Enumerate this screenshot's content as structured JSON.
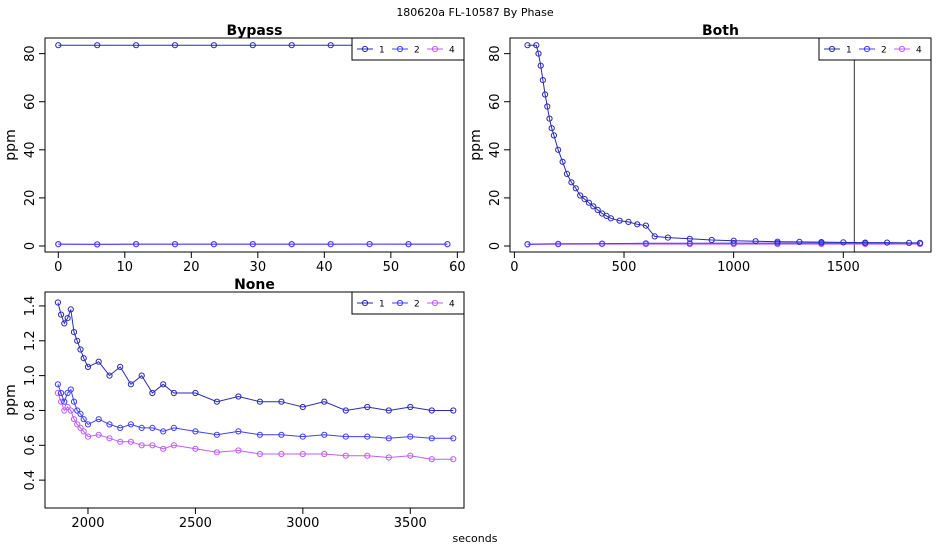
{
  "figure": {
    "suptitle": "180620a    FL-10587   By Phase",
    "xlabel": "seconds"
  },
  "chart_data": [
    {
      "type": "line",
      "title": "Bypass",
      "ylabel": "ppm",
      "xlabel": "",
      "xlim": [
        -2,
        61
      ],
      "ylim": [
        -2.5,
        86.5
      ],
      "xticks": [
        0,
        10,
        20,
        30,
        40,
        50,
        60
      ],
      "yticks": [
        0,
        20,
        40,
        60,
        80
      ],
      "legend_position": "top-right",
      "series": [
        {
          "name": "1",
          "color": "#2a2ab8",
          "x": [
            0,
            5.85,
            11.7,
            17.55,
            23.4,
            29.25,
            35.1,
            40.95,
            46.8,
            52.65,
            58.5
          ],
          "y": [
            83.5,
            83.5,
            83.5,
            83.5,
            83.5,
            83.5,
            83.5,
            83.5,
            83.5,
            83.5,
            83.5
          ]
        },
        {
          "name": "2",
          "color": "#3f3fff",
          "x": [
            0,
            5.85,
            11.7,
            17.55,
            23.4,
            29.25,
            35.1,
            40.95,
            46.8,
            52.65,
            58.5
          ],
          "y": [
            0.8,
            0.7,
            0.8,
            0.8,
            0.8,
            0.8,
            0.8,
            0.8,
            0.8,
            0.8,
            0.8
          ]
        },
        {
          "name": "4",
          "color": "#c05cff",
          "x": [
            0,
            5.85,
            11.7,
            17.55,
            23.4,
            29.25,
            35.1,
            40.95,
            46.8,
            52.65,
            58.5
          ],
          "y": [
            0.7,
            0.6,
            0.7,
            0.7,
            0.7,
            0.7,
            0.7,
            0.7,
            0.8,
            0.7,
            0.7
          ]
        }
      ]
    },
    {
      "type": "line",
      "title": "Both",
      "ylabel": "ppm",
      "xlabel": "",
      "xlim": [
        -20,
        1900
      ],
      "ylim": [
        -2.5,
        86.5
      ],
      "xticks": [
        0,
        500,
        1000,
        1500
      ],
      "yticks": [
        0,
        20,
        40,
        60,
        80
      ],
      "legend_position": "top-right",
      "vline": 1550,
      "series": [
        {
          "name": "1",
          "color": "#2a2ab8",
          "x": [
            60,
            100,
            110,
            120,
            130,
            140,
            150,
            160,
            170,
            180,
            200,
            220,
            240,
            260,
            280,
            300,
            320,
            340,
            360,
            380,
            400,
            420,
            440,
            480,
            520,
            560,
            600,
            640,
            700,
            800,
            900,
            1000,
            1100,
            1200,
            1300,
            1400,
            1500,
            1600,
            1700,
            1800,
            1850
          ],
          "y": [
            83.5,
            83.5,
            80,
            75,
            69,
            63,
            58,
            53,
            49,
            46,
            40,
            35,
            30,
            26.5,
            24,
            21,
            19.5,
            18,
            16.5,
            15,
            13.5,
            12.5,
            11.5,
            10.5,
            10,
            9,
            8.5,
            4,
            3.5,
            3,
            2.5,
            2.2,
            2,
            1.8,
            1.7,
            1.6,
            1.5,
            1.4,
            1.4,
            1.3,
            1.3
          ]
        },
        {
          "name": "2",
          "color": "#3f3fff",
          "x": [
            60,
            200,
            400,
            600,
            800,
            1000,
            1200,
            1400,
            1600,
            1850
          ],
          "y": [
            0.8,
            0.9,
            1.0,
            1.1,
            1.1,
            1.2,
            1.2,
            1.2,
            1.2,
            1.2
          ]
        },
        {
          "name": "4",
          "color": "#c05cff",
          "x": [
            60,
            200,
            400,
            600,
            800,
            1000,
            1200,
            1400,
            1600,
            1850
          ],
          "y": [
            0.6,
            0.7,
            0.8,
            0.8,
            0.8,
            0.8,
            0.8,
            0.8,
            0.8,
            0.8
          ]
        }
      ]
    },
    {
      "type": "line",
      "title": "None",
      "ylabel": "ppm",
      "xlabel": "",
      "xlim": [
        1800,
        3750
      ],
      "ylim": [
        0.24,
        1.48
      ],
      "xticks": [
        2000,
        2500,
        3000,
        3500
      ],
      "yticks": [
        0.4,
        0.6,
        0.8,
        1.0,
        1.2,
        1.4
      ],
      "legend_position": "top-right",
      "series": [
        {
          "name": "1",
          "color": "#2a2ab8",
          "x": [
            1860,
            1875,
            1890,
            1905,
            1920,
            1935,
            1950,
            1965,
            1980,
            2000,
            2050,
            2100,
            2150,
            2200,
            2250,
            2300,
            2350,
            2400,
            2500,
            2600,
            2700,
            2800,
            2900,
            3000,
            3100,
            3200,
            3300,
            3400,
            3500,
            3600,
            3700
          ],
          "y": [
            1.42,
            1.35,
            1.3,
            1.33,
            1.38,
            1.25,
            1.2,
            1.15,
            1.1,
            1.05,
            1.08,
            1.0,
            1.05,
            0.95,
            1.0,
            0.9,
            0.95,
            0.9,
            0.9,
            0.85,
            0.88,
            0.85,
            0.85,
            0.82,
            0.85,
            0.8,
            0.82,
            0.8,
            0.82,
            0.8,
            0.8
          ]
        },
        {
          "name": "2",
          "color": "#3f3fff",
          "x": [
            1860,
            1875,
            1890,
            1905,
            1920,
            1935,
            1950,
            1965,
            1980,
            2000,
            2050,
            2100,
            2150,
            2200,
            2250,
            2300,
            2350,
            2400,
            2500,
            2600,
            2700,
            2800,
            2900,
            3000,
            3100,
            3200,
            3300,
            3400,
            3500,
            3600,
            3700
          ],
          "y": [
            0.95,
            0.9,
            0.85,
            0.9,
            0.92,
            0.85,
            0.8,
            0.78,
            0.75,
            0.72,
            0.75,
            0.72,
            0.7,
            0.72,
            0.7,
            0.7,
            0.68,
            0.7,
            0.68,
            0.66,
            0.68,
            0.66,
            0.66,
            0.65,
            0.66,
            0.65,
            0.65,
            0.64,
            0.65,
            0.64,
            0.64
          ]
        },
        {
          "name": "4",
          "color": "#c05cff",
          "x": [
            1860,
            1875,
            1890,
            1905,
            1920,
            1935,
            1950,
            1965,
            1980,
            2000,
            2050,
            2100,
            2150,
            2200,
            2250,
            2300,
            2350,
            2400,
            2500,
            2600,
            2700,
            2800,
            2900,
            3000,
            3100,
            3200,
            3300,
            3400,
            3500,
            3600,
            3700
          ],
          "y": [
            0.9,
            0.85,
            0.8,
            0.82,
            0.8,
            0.75,
            0.72,
            0.7,
            0.68,
            0.65,
            0.66,
            0.64,
            0.62,
            0.62,
            0.6,
            0.6,
            0.58,
            0.6,
            0.58,
            0.56,
            0.57,
            0.55,
            0.55,
            0.55,
            0.55,
            0.54,
            0.54,
            0.53,
            0.54,
            0.52,
            0.52
          ]
        }
      ]
    }
  ]
}
